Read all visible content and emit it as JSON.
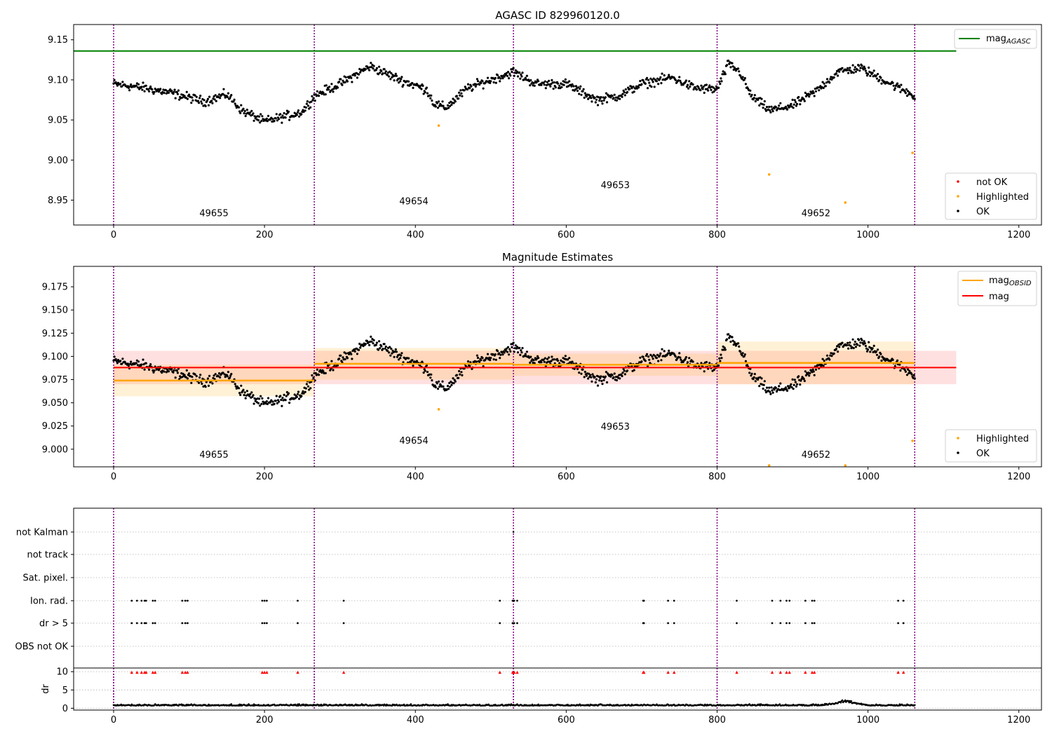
{
  "figure": {
    "background": "#ffffff"
  },
  "colors": {
    "ok": "#000000",
    "highlighted": "#ffa500",
    "not_ok": "#ff0000",
    "agasc_line": "#008000",
    "obsid_line": "#ffa500",
    "mag_line": "#ff0000",
    "boundary": "#800080",
    "grid": "#b0b0b0"
  },
  "obsids": [
    {
      "label": "49655",
      "start": 0,
      "end": 266,
      "center": 133
    },
    {
      "label": "49654",
      "start": 266,
      "end": 530,
      "center": 398
    },
    {
      "label": "49653",
      "start": 530,
      "end": 800,
      "center": 665
    },
    {
      "label": "49652",
      "start": 800,
      "end": 1062,
      "center": 931
    }
  ],
  "chart_data": [
    {
      "id": "agasc",
      "type": "scatter",
      "title": "AGASC ID 829960120.0",
      "xlim": [
        -53,
        1230
      ],
      "ylim": [
        8.919,
        9.169
      ],
      "xticks": [
        0,
        200,
        400,
        600,
        800,
        1000,
        1200
      ],
      "yticks": [
        8.95,
        9.0,
        9.05,
        9.1,
        9.15
      ],
      "ytick_labels": [
        "8.95",
        "9.00",
        "9.05",
        "9.10",
        "9.15"
      ],
      "obsid_label_y": [
        8.93,
        8.945,
        8.965,
        8.93
      ],
      "lines": [
        {
          "name": "mag",
          "sub": "AGASC",
          "y": 9.136,
          "x": [
            -53,
            1117
          ],
          "color": "#008000"
        }
      ],
      "legend_lines": [
        {
          "name": "mag",
          "sub": "AGASC"
        }
      ],
      "legend_points": [
        "not OK",
        "Highlighted",
        "OK"
      ],
      "highlighted_points": [
        [
          431,
          9.043
        ],
        [
          869,
          8.982
        ],
        [
          970,
          8.947
        ],
        [
          1059,
          9.009
        ]
      ],
      "ok_trend": [
        [
          0,
          9.095
        ],
        [
          40,
          9.09
        ],
        [
          80,
          9.083
        ],
        [
          120,
          9.073
        ],
        [
          150,
          9.082
        ],
        [
          170,
          9.062
        ],
        [
          200,
          9.048
        ],
        [
          230,
          9.055
        ],
        [
          250,
          9.06
        ],
        [
          266,
          9.08
        ],
        [
          300,
          9.095
        ],
        [
          340,
          9.117
        ],
        [
          380,
          9.1
        ],
        [
          415,
          9.088
        ],
        [
          425,
          9.07
        ],
        [
          440,
          9.065
        ],
        [
          470,
          9.09
        ],
        [
          500,
          9.1
        ],
        [
          530,
          9.11
        ],
        [
          560,
          9.095
        ],
        [
          600,
          9.095
        ],
        [
          640,
          9.075
        ],
        [
          670,
          9.08
        ],
        [
          700,
          9.095
        ],
        [
          740,
          9.103
        ],
        [
          770,
          9.09
        ],
        [
          800,
          9.088
        ],
        [
          815,
          9.12
        ],
        [
          830,
          9.11
        ],
        [
          845,
          9.08
        ],
        [
          870,
          9.062
        ],
        [
          900,
          9.068
        ],
        [
          930,
          9.085
        ],
        [
          960,
          9.11
        ],
        [
          990,
          9.115
        ],
        [
          1020,
          9.1
        ],
        [
          1062,
          9.08
        ]
      ]
    },
    {
      "id": "estimates",
      "type": "scatter",
      "title": "Magnitude Estimates",
      "xlim": [
        -53,
        1230
      ],
      "ylim": [
        8.981,
        9.197
      ],
      "xticks": [
        0,
        200,
        400,
        600,
        800,
        1000,
        1200
      ],
      "yticks": [
        9.0,
        9.025,
        9.05,
        9.075,
        9.1,
        9.125,
        9.15,
        9.175
      ],
      "ytick_labels": [
        "9.000",
        "9.025",
        "9.050",
        "9.075",
        "9.100",
        "9.125",
        "9.150",
        "9.175"
      ],
      "obsid_label_y": [
        8.991,
        9.006,
        9.021,
        8.991
      ],
      "mag": {
        "name": "mag",
        "value": 9.088,
        "band": [
          9.07,
          9.106
        ],
        "x": [
          0,
          1117
        ]
      },
      "obsid_mags": [
        {
          "label": "49655",
          "value": 9.074,
          "band": [
            9.057,
            9.091
          ]
        },
        {
          "label": "49654",
          "value": 9.092,
          "band": [
            9.075,
            9.109
          ]
        },
        {
          "label": "49653",
          "value": 9.091,
          "band": [
            9.079,
            9.103
          ]
        },
        {
          "label": "49652",
          "value": 9.093,
          "band": [
            9.07,
            9.116
          ]
        }
      ],
      "legend_lines": [
        {
          "name": "mag",
          "sub": "OBSID"
        },
        {
          "name": "mag",
          "sub": ""
        }
      ],
      "legend_points": [
        "Highlighted",
        "OK"
      ]
    },
    {
      "id": "flags",
      "type": "scatter",
      "title": "",
      "xlim": [
        -53,
        1230
      ],
      "flag_labels": [
        "not Kalman",
        "not track",
        "Sat. pixel.",
        "Ion. rad.",
        "dr > 5",
        "OBS not OK"
      ],
      "flag_events": [
        24,
        31,
        37,
        41,
        43,
        52,
        55,
        91,
        95,
        98,
        197,
        200,
        203,
        244,
        305,
        512,
        529,
        531,
        535,
        702,
        703,
        735,
        743,
        826,
        873,
        884,
        892,
        896,
        917,
        926,
        929,
        1040,
        1047
      ],
      "ion_only_events": [
        530
      ],
      "xticks": [
        0,
        200,
        400,
        600,
        800,
        1000,
        1200
      ]
    },
    {
      "id": "dr",
      "type": "scatter",
      "title": "",
      "ylabel": "dr",
      "xlim": [
        -53,
        1230
      ],
      "ylim": [
        -0.5,
        11
      ],
      "yticks": [
        0,
        5,
        10
      ],
      "ytick_labels": [
        "0",
        "5",
        "10"
      ],
      "xticks": [
        0,
        200,
        400,
        600,
        800,
        1000,
        1200
      ],
      "xtick_labels": [
        "0",
        "200",
        "400",
        "600",
        "800",
        "1000",
        "1200"
      ],
      "dr_level": 0.7,
      "bump": {
        "x": 970,
        "peak": 2.1
      },
      "clipped_marker_y": 9.8
    }
  ]
}
